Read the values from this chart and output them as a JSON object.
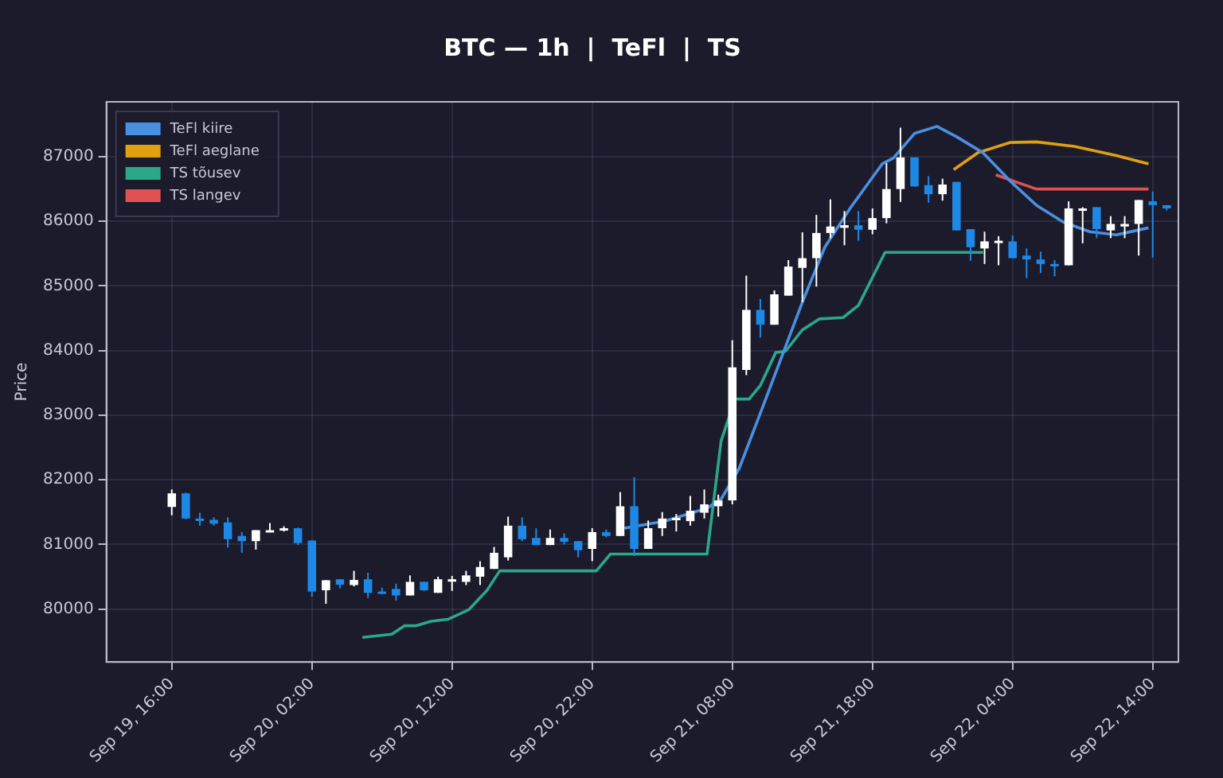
{
  "chart_data": {
    "type": "candlestick",
    "title": "BTC — 1h  |  TeFl  |  TS",
    "ylabel": "Price",
    "x": [
      "--09-19T16:00",
      "--09-19T17:00",
      "--09-19T18:00",
      "--09-19T19:00",
      "--09-19T20:00",
      "--09-19T21:00",
      "--09-19T22:00",
      "--09-19T23:00",
      "--09-20T00:00",
      "--09-20T01:00",
      "--09-20T02:00",
      "--09-20T03:00",
      "--09-20T04:00",
      "--09-20T05:00",
      "--09-20T06:00",
      "--09-20T07:00",
      "--09-20T08:00",
      "--09-20T09:00",
      "--09-20T10:00",
      "--09-20T11:00",
      "--09-20T12:00",
      "--09-20T13:00",
      "--09-20T14:00",
      "--09-20T15:00",
      "--09-20T16:00",
      "--09-20T17:00",
      "--09-20T18:00",
      "--09-20T19:00",
      "--09-20T20:00",
      "--09-20T21:00",
      "--09-20T22:00",
      "--09-20T23:00",
      "--09-21T00:00",
      "--09-21T01:00",
      "--09-21T02:00",
      "--09-21T03:00",
      "--09-21T04:00",
      "--09-21T05:00",
      "--09-21T06:00",
      "--09-21T07:00",
      "--09-21T08:00",
      "--09-21T09:00",
      "--09-21T10:00",
      "--09-21T11:00",
      "--09-21T12:00",
      "--09-21T13:00",
      "--09-21T14:00",
      "--09-21T15:00",
      "--09-21T16:00",
      "--09-21T17:00",
      "--09-21T18:00",
      "--09-21T19:00",
      "--09-21T20:00",
      "--09-21T21:00",
      "--09-21T22:00",
      "--09-21T23:00",
      "--09-22T00:00",
      "--09-22T01:00",
      "--09-22T02:00",
      "--09-22T03:00",
      "--09-22T04:00",
      "--09-22T05:00",
      "--09-22T06:00",
      "--09-22T07:00",
      "--09-22T08:00",
      "--09-22T09:00",
      "--09-22T10:00",
      "--09-22T11:00",
      "--09-22T12:00",
      "--09-22T13:00",
      "--09-22T14:00",
      "--09-22T15:00"
    ],
    "ohlc": [
      [
        81580,
        81850,
        81450,
        81790
      ],
      [
        81790,
        81800,
        81390,
        81400
      ],
      [
        81400,
        81490,
        81290,
        81380
      ],
      [
        81380,
        81420,
        81290,
        81320
      ],
      [
        81340,
        81420,
        80950,
        81080
      ],
      [
        81130,
        81190,
        80870,
        81050
      ],
      [
        81050,
        81220,
        80920,
        81220
      ],
      [
        81200,
        81330,
        81190,
        81220
      ],
      [
        81220,
        81280,
        81200,
        81250
      ],
      [
        81250,
        81260,
        80990,
        81020
      ],
      [
        81060,
        81060,
        80190,
        80270
      ],
      [
        80290,
        80445,
        80080,
        80445
      ],
      [
        80460,
        80460,
        80320,
        80375
      ],
      [
        80370,
        80590,
        80350,
        80450
      ],
      [
        80460,
        80560,
        80170,
        80250
      ],
      [
        80270,
        80330,
        80230,
        80250
      ],
      [
        80310,
        80390,
        80130,
        80210
      ],
      [
        80210,
        80520,
        80210,
        80420
      ],
      [
        80420,
        80420,
        80275,
        80290
      ],
      [
        80250,
        80500,
        80250,
        80460
      ],
      [
        80430,
        80510,
        80280,
        80460
      ],
      [
        80420,
        80590,
        80370,
        80520
      ],
      [
        80500,
        80740,
        80370,
        80650
      ],
      [
        80620,
        80960,
        80620,
        80870
      ],
      [
        80800,
        81430,
        80750,
        81290
      ],
      [
        81290,
        81420,
        81050,
        81080
      ],
      [
        81100,
        81250,
        80990,
        80990
      ],
      [
        80990,
        81230,
        80990,
        81100
      ],
      [
        81100,
        81170,
        81000,
        81040
      ],
      [
        81050,
        81050,
        80800,
        80910
      ],
      [
        80930,
        81250,
        80740,
        81190
      ],
      [
        81190,
        81230,
        81110,
        81130
      ],
      [
        81130,
        81810,
        81130,
        81590
      ],
      [
        81590,
        82040,
        80820,
        80930
      ],
      [
        80930,
        81370,
        80930,
        81250
      ],
      [
        81250,
        81500,
        81130,
        81400
      ],
      [
        81380,
        81470,
        81200,
        81410
      ],
      [
        81360,
        81750,
        81290,
        81520
      ],
      [
        81490,
        81850,
        81400,
        81620
      ],
      [
        81590,
        81770,
        81430,
        81680
      ],
      [
        81680,
        84160,
        81620,
        83740
      ],
      [
        83700,
        85160,
        83620,
        84630
      ],
      [
        84630,
        84800,
        84200,
        84400
      ],
      [
        84400,
        84930,
        84400,
        84870
      ],
      [
        84850,
        85400,
        84850,
        85300
      ],
      [
        85280,
        85830,
        84750,
        85430
      ],
      [
        85430,
        86100,
        84990,
        85820
      ],
      [
        85820,
        86340,
        85740,
        85920
      ],
      [
        85900,
        86160,
        85630,
        85940
      ],
      [
        85940,
        86160,
        85700,
        85870
      ],
      [
        85870,
        86200,
        85800,
        86050
      ],
      [
        86050,
        86900,
        85970,
        86500
      ],
      [
        86500,
        87450,
        86300,
        86990
      ],
      [
        86990,
        86990,
        86540,
        86540
      ],
      [
        86560,
        86700,
        86290,
        86420
      ],
      [
        86420,
        86660,
        86320,
        86570
      ],
      [
        86610,
        86610,
        85860,
        85860
      ],
      [
        85880,
        85880,
        85390,
        85600
      ],
      [
        85580,
        85840,
        85340,
        85690
      ],
      [
        85670,
        85770,
        85320,
        85700
      ],
      [
        85690,
        85780,
        85430,
        85430
      ],
      [
        85470,
        85580,
        85120,
        85410
      ],
      [
        85410,
        85530,
        85200,
        85340
      ],
      [
        85340,
        85400,
        85150,
        85320
      ],
      [
        85320,
        86310,
        85320,
        86200
      ],
      [
        86180,
        86220,
        85660,
        86200
      ],
      [
        86220,
        86220,
        85740,
        85880
      ],
      [
        85860,
        86080,
        85740,
        85960
      ],
      [
        85920,
        86080,
        85740,
        85960
      ],
      [
        85960,
        86330,
        85470,
        86330
      ],
      [
        86310,
        86460,
        85440,
        86250
      ],
      [
        86250,
        86250,
        86170,
        86200
      ]
    ],
    "colors": [
      "#ffffff",
      "#1e88e5",
      "#1e88e5",
      "#1e88e5",
      "#1e88e5",
      "#1e88e5",
      "#ffffff",
      "#ffffff",
      "#ffffff",
      "#1e88e5",
      "#1e88e5",
      "#ffffff",
      "#1e88e5",
      "#ffffff",
      "#1e88e5",
      "#1e88e5",
      "#1e88e5",
      "#ffffff",
      "#1e88e5",
      "#ffffff",
      "#ffffff",
      "#ffffff",
      "#ffffff",
      "#ffffff",
      "#ffffff",
      "#1e88e5",
      "#1e88e5",
      "#ffffff",
      "#1e88e5",
      "#1e88e5",
      "#ffffff",
      "#1e88e5",
      "#ffffff",
      "#1e88e5",
      "#ffffff",
      "#ffffff",
      "#ffffff",
      "#ffffff",
      "#ffffff",
      "#ffffff",
      "#ffffff",
      "#ffffff",
      "#1e88e5",
      "#ffffff",
      "#ffffff",
      "#ffffff",
      "#ffffff",
      "#ffffff",
      "#ffffff",
      "#1e88e5",
      "#ffffff",
      "#ffffff",
      "#ffffff",
      "#1e88e5",
      "#1e88e5",
      "#ffffff",
      "#1e88e5",
      "#1e88e5",
      "#ffffff",
      "#ffffff",
      "#1e88e5",
      "#1e88e5",
      "#1e88e5",
      "#1e88e5",
      "#ffffff",
      "#ffffff",
      "#1e88e5",
      "#ffffff",
      "#ffffff",
      "#ffffff",
      "#1e88e5",
      "#1e88e5"
    ],
    "series": [
      {
        "type": "line",
        "name": "TeFl kiire",
        "color": "#4a90e2",
        "x": [
          "--09-21T00:18",
          "--09-21T03:12",
          "--09-21T06:12",
          "--09-21T07:12",
          "--09-21T08:30",
          "--09-21T10:00",
          "--09-21T11:30",
          "--09-21T13:00",
          "--09-21T14:36",
          "--09-21T16:24",
          "--09-21T18:42",
          "--09-21T19:30",
          "--09-21T21:00",
          "--09-21T22:36",
          "--09-22T00:00",
          "--09-22T01:54",
          "--09-22T03:48",
          "--09-22T05:42",
          "--09-22T07:36",
          "--09-22T09:30",
          "--09-22T11:24",
          "--09-22T13:42"
        ],
        "values": [
          81250,
          81360,
          81560,
          81700,
          82180,
          83030,
          83890,
          84750,
          85600,
          86200,
          86890,
          86980,
          87360,
          87470,
          87310,
          87060,
          86630,
          86250,
          85990,
          85840,
          85790,
          85900
        ]
      },
      {
        "type": "line",
        "name": "TeFl aeglane",
        "color": "#e0a010",
        "x": [
          "--09-21T23:48",
          "--09-22T01:30",
          "--09-22T03:48",
          "--09-22T05:42",
          "--09-22T08:24",
          "--09-22T11:24",
          "--09-22T13:42"
        ],
        "values": [
          86800,
          87060,
          87220,
          87230,
          87160,
          87020,
          86890
        ]
      },
      {
        "type": "line",
        "name": "TS tõusev",
        "color": "#2aa889",
        "x": [
          "--09-20T05:36",
          "--09-20T07:42",
          "--09-20T08:36",
          "--09-20T09:24",
          "--09-20T10:30",
          "--09-20T11:42",
          "--09-20T13:12",
          "--09-20T14:30",
          "--09-20T15:24",
          "--09-20T22:18",
          "--09-20T23:18",
          "--09-21T06:12",
          "--09-21T07:12",
          "--09-21T08:12",
          "--09-21T09:12",
          "--09-21T10:00",
          "--09-21T11:06",
          "--09-21T11:48",
          "--09-21T13:00",
          "--09-21T14:12",
          "--09-21T15:54",
          "--09-21T17:00",
          "--09-21T18:54",
          "--09-22T01:54"
        ],
        "values": [
          79560,
          79610,
          79740,
          79740,
          79810,
          79840,
          79990,
          80290,
          80590,
          80590,
          80850,
          80850,
          82600,
          83250,
          83250,
          83460,
          83970,
          83990,
          84320,
          84490,
          84510,
          84700,
          85520,
          85520
        ]
      },
      {
        "type": "line",
        "name": "TS langev",
        "color": "#e05252",
        "x": [
          "--09-22T02:48",
          "--09-22T05:42",
          "--09-22T13:42"
        ],
        "values": [
          86720,
          86500,
          86500
        ]
      }
    ],
    "xlim": [
      "--09-19T11:20",
      "--09-22T15:50"
    ],
    "xticks": [
      {
        "value": "--09-19T16:00",
        "label": "Sep 19, 16:00"
      },
      {
        "value": "--09-20T02:00",
        "label": "Sep 20, 02:00"
      },
      {
        "value": "--09-20T12:00",
        "label": "Sep 20, 12:00"
      },
      {
        "value": "--09-20T22:00",
        "label": "Sep 20, 22:00"
      },
      {
        "value": "--09-21T08:00",
        "label": "Sep 21, 08:00"
      },
      {
        "value": "--09-21T18:00",
        "label": "Sep 21, 18:00"
      },
      {
        "value": "--09-22T04:00",
        "label": "Sep 22, 04:00"
      },
      {
        "value": "--09-22T14:00",
        "label": "Sep 22, 14:00"
      }
    ],
    "ylim": [
      79180,
      87850
    ],
    "yticks": [
      80000,
      81000,
      82000,
      83000,
      84000,
      85000,
      86000,
      87000
    ],
    "grid": true,
    "legend": "top left",
    "marker": "none",
    "line_style": "solid"
  }
}
